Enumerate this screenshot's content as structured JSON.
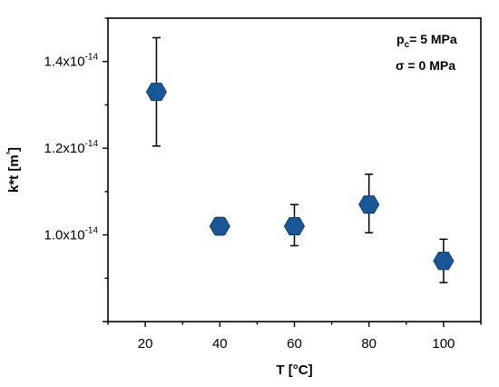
{
  "chart_data": {
    "type": "scatter",
    "xlabel": "T [°C]",
    "ylabel": "k*t [m³]",
    "xlim": [
      10,
      110
    ],
    "ylim": [
      8e-15,
      1.5e-14
    ],
    "x_ticks": [
      20,
      40,
      60,
      80,
      100
    ],
    "x_tick_labels": [
      "20",
      "40",
      "60",
      "80",
      "100"
    ],
    "y_ticks": [
      1e-14,
      1.2e-14,
      1.4e-14
    ],
    "y_tick_labels": [
      {
        "base": "1.0x10",
        "exp": "-14"
      },
      {
        "base": "1.2x10",
        "exp": "-14"
      },
      {
        "base": "1.4x10",
        "exp": "-14"
      }
    ],
    "annotations": [
      {
        "base": "p",
        "sub": "c",
        "rest": "= 5 MPa"
      },
      {
        "base": "σ = 0 MPa",
        "sub": "",
        "rest": ""
      }
    ],
    "marker": "hexagon",
    "color": "#1a5796",
    "points": [
      {
        "x": 23,
        "y": 1.33e-14,
        "err_low": 1.205e-14,
        "err_high": 1.455e-14
      },
      {
        "x": 40,
        "y": 1.02e-14,
        "err_low": 1e-14,
        "err_high": 1.04e-14
      },
      {
        "x": 60,
        "y": 1.02e-14,
        "err_low": 9.75e-15,
        "err_high": 1.07e-14
      },
      {
        "x": 80,
        "y": 1.07e-14,
        "err_low": 1.005e-14,
        "err_high": 1.14e-14
      },
      {
        "x": 100,
        "y": 9.4e-15,
        "err_low": 8.9e-15,
        "err_high": 9.9e-15
      }
    ]
  }
}
